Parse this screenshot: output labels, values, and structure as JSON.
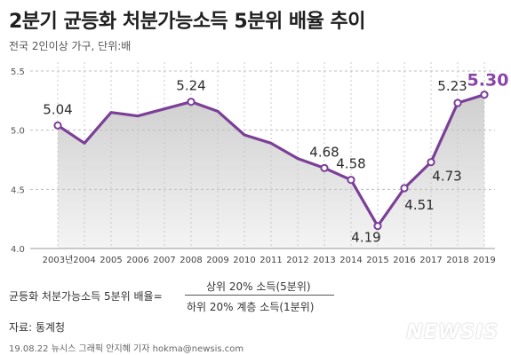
{
  "header": {
    "title": "2분기 균등화 처분가능소득 5분위 배율 추이",
    "subtitle": "전국 2인이상 가구, 단위:배"
  },
  "chart_data": {
    "type": "area",
    "categories": [
      "2003년",
      "2004",
      "2005",
      "2006",
      "2007",
      "2008",
      "2009",
      "2010",
      "2011",
      "2012",
      "2013",
      "2014",
      "2015",
      "2016",
      "2017",
      "2018",
      "2019"
    ],
    "values": [
      5.04,
      4.89,
      5.15,
      5.12,
      5.18,
      5.24,
      5.16,
      4.96,
      4.89,
      4.76,
      4.68,
      4.58,
      4.19,
      4.51,
      4.73,
      5.23,
      5.3
    ],
    "labeled_points": [
      {
        "index": 0,
        "text": "5.04"
      },
      {
        "index": 5,
        "text": "5.24"
      },
      {
        "index": 10,
        "text": "4.68"
      },
      {
        "index": 11,
        "text": "4.58"
      },
      {
        "index": 12,
        "text": "4.19"
      },
      {
        "index": 13,
        "text": "4.51"
      },
      {
        "index": 14,
        "text": "4.73"
      },
      {
        "index": 15,
        "text": "5.23"
      },
      {
        "index": 16,
        "text": "5.30"
      }
    ],
    "highlight_index": 16,
    "yticks": [
      "4.0",
      "4.5",
      "5.0",
      "5.5"
    ],
    "ylim": [
      4.0,
      5.5
    ],
    "grid": "dashed horizontal",
    "colors": {
      "line": "#7b3f98",
      "highlight": "#8a45a8",
      "area_top": "#cfcfcf",
      "area_bottom": "#f4f4f4"
    }
  },
  "formula": {
    "left": "균등화 처분가능소득 5분위 배율=",
    "numerator": "상위 20% 소득(5분위)",
    "denominator": "하위 20% 계층 소득(1분위)"
  },
  "source": "자료: 통계청",
  "footer": "19.08.22  뉴시스 그래픽 안지혜 기자  hokma@newsis.com",
  "logo": "NEWSIS"
}
